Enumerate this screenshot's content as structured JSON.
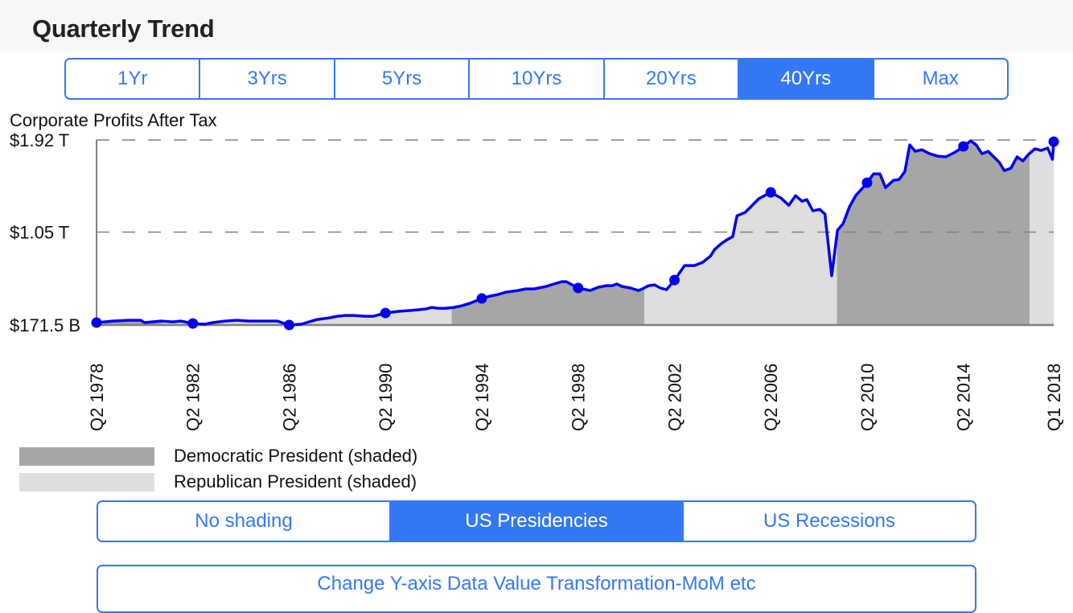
{
  "header": {
    "title": "Quarterly Trend"
  },
  "range_selector": {
    "options": [
      "1Yr",
      "3Yrs",
      "5Yrs",
      "10Yrs",
      "20Yrs",
      "40Yrs",
      "Max"
    ],
    "selected": "40Yrs"
  },
  "shading_selector": {
    "options": [
      "No shading",
      "US Presidencies",
      "US Recessions"
    ],
    "selected": "US Presidencies"
  },
  "transform_button": {
    "label": "Change Y-axis Data Value Transformation-MoM etc"
  },
  "legend": [
    {
      "label": "Democratic President (shaded)",
      "color": "#a6a6a6"
    },
    {
      "label": "Republican President (shaded)",
      "color": "#dedede"
    }
  ],
  "colors": {
    "accent": "#3478f6",
    "line": "#0000ee",
    "democratic": "#a6a6a6",
    "republican": "#dedede",
    "grid": "#808080"
  },
  "chart_data": {
    "type": "area",
    "title": "Corporate Profits After Tax",
    "xlabel": "",
    "ylabel": "",
    "units": "billions USD",
    "x_range": [
      1978.25,
      2018.0
    ],
    "ylim": [
      171.5,
      1920
    ],
    "y_ticks": [
      {
        "value": 171.5,
        "label": "$171.5 B"
      },
      {
        "value": 1050,
        "label": "$1.05 T"
      },
      {
        "value": 1920,
        "label": "$1.92 T"
      }
    ],
    "grid": "horizontal dashed at tick values",
    "x_ticks": [
      {
        "x": 1978.25,
        "label": "Q2 1978"
      },
      {
        "x": 1982.25,
        "label": "Q2 1982"
      },
      {
        "x": 1986.25,
        "label": "Q2 1986"
      },
      {
        "x": 1990.25,
        "label": "Q2 1990"
      },
      {
        "x": 1994.25,
        "label": "Q2 1994"
      },
      {
        "x": 1998.25,
        "label": "Q2 1998"
      },
      {
        "x": 2002.25,
        "label": "Q2 2002"
      },
      {
        "x": 2006.25,
        "label": "Q2 2006"
      },
      {
        "x": 2010.25,
        "label": "Q2 2010"
      },
      {
        "x": 2014.25,
        "label": "Q2 2014"
      },
      {
        "x": 2018.0,
        "label": "Q1 2018"
      }
    ],
    "series": [
      {
        "name": "Corporate Profits After Tax",
        "points": [
          [
            1978.25,
            194
          ],
          [
            1978.92,
            209
          ],
          [
            1979.58,
            216
          ],
          [
            1980.08,
            216
          ],
          [
            1980.25,
            194
          ],
          [
            1980.92,
            209
          ],
          [
            1981.42,
            201
          ],
          [
            1981.75,
            209
          ],
          [
            1982.25,
            186
          ],
          [
            1982.75,
            179
          ],
          [
            1983.08,
            194
          ],
          [
            1983.58,
            209
          ],
          [
            1984.08,
            216
          ],
          [
            1984.58,
            209
          ],
          [
            1985.25,
            209
          ],
          [
            1985.75,
            209
          ],
          [
            1986.25,
            171.5
          ],
          [
            1986.75,
            179
          ],
          [
            1987.08,
            201
          ],
          [
            1987.42,
            224
          ],
          [
            1987.92,
            239
          ],
          [
            1988.25,
            254
          ],
          [
            1988.58,
            262
          ],
          [
            1988.92,
            262
          ],
          [
            1989.42,
            254
          ],
          [
            1989.75,
            254
          ],
          [
            1990.25,
            285
          ],
          [
            1990.75,
            300
          ],
          [
            1991.25,
            308
          ],
          [
            1991.58,
            315
          ],
          [
            1991.92,
            323
          ],
          [
            1992.18,
            338
          ],
          [
            1992.42,
            330
          ],
          [
            1992.75,
            330
          ],
          [
            1993.08,
            338
          ],
          [
            1993.42,
            353
          ],
          [
            1993.75,
            376
          ],
          [
            1994.25,
            422
          ],
          [
            1994.58,
            444
          ],
          [
            1994.92,
            460
          ],
          [
            1995.25,
            482
          ],
          [
            1995.75,
            498
          ],
          [
            1996.08,
            513
          ],
          [
            1996.42,
            513
          ],
          [
            1996.92,
            536
          ],
          [
            1997.25,
            559
          ],
          [
            1997.58,
            581
          ],
          [
            1997.75,
            581
          ],
          [
            1998.25,
            521
          ],
          [
            1998.42,
            513
          ],
          [
            1998.75,
            498
          ],
          [
            1999.08,
            528
          ],
          [
            1999.42,
            543
          ],
          [
            1999.67,
            543
          ],
          [
            1999.85,
            559
          ],
          [
            2000.08,
            536
          ],
          [
            2000.42,
            521
          ],
          [
            2000.75,
            498
          ],
          [
            2000.92,
            513
          ],
          [
            2001.18,
            543
          ],
          [
            2001.42,
            551
          ],
          [
            2001.67,
            521
          ],
          [
            2001.92,
            505
          ],
          [
            2002.25,
            596
          ],
          [
            2002.67,
            733
          ],
          [
            2003.08,
            733
          ],
          [
            2003.42,
            764
          ],
          [
            2003.75,
            824
          ],
          [
            2003.92,
            885
          ],
          [
            2004.18,
            938
          ],
          [
            2004.42,
            976
          ],
          [
            2004.67,
            1006
          ],
          [
            2004.85,
            1204
          ],
          [
            2005.18,
            1235
          ],
          [
            2005.42,
            1288
          ],
          [
            2005.75,
            1364
          ],
          [
            2006.25,
            1425
          ],
          [
            2006.67,
            1372
          ],
          [
            2007.0,
            1303
          ],
          [
            2007.28,
            1394
          ],
          [
            2007.55,
            1341
          ],
          [
            2007.75,
            1356
          ],
          [
            2008.0,
            1250
          ],
          [
            2008.28,
            1265
          ],
          [
            2008.5,
            1220
          ],
          [
            2008.78,
            637
          ],
          [
            2009.02,
            1068
          ],
          [
            2009.25,
            1128
          ],
          [
            2009.52,
            1288
          ],
          [
            2009.78,
            1395
          ],
          [
            2010.02,
            1455
          ],
          [
            2010.25,
            1516
          ],
          [
            2010.52,
            1600
          ],
          [
            2010.78,
            1600
          ],
          [
            2011.02,
            1470
          ],
          [
            2011.35,
            1539
          ],
          [
            2011.58,
            1547
          ],
          [
            2011.82,
            1623
          ],
          [
            2012.02,
            1874
          ],
          [
            2012.25,
            1813
          ],
          [
            2012.52,
            1828
          ],
          [
            2012.85,
            1790
          ],
          [
            2013.18,
            1767
          ],
          [
            2013.52,
            1760
          ],
          [
            2013.85,
            1798
          ],
          [
            2014.02,
            1821
          ],
          [
            2014.25,
            1859
          ],
          [
            2014.55,
            1912
          ],
          [
            2014.78,
            1874
          ],
          [
            2015.02,
            1790
          ],
          [
            2015.28,
            1813
          ],
          [
            2015.75,
            1706
          ],
          [
            2015.95,
            1630
          ],
          [
            2016.22,
            1653
          ],
          [
            2016.48,
            1760
          ],
          [
            2016.72,
            1722
          ],
          [
            2016.95,
            1783
          ],
          [
            2017.22,
            1836
          ],
          [
            2017.48,
            1821
          ],
          [
            2017.75,
            1844
          ],
          [
            2017.95,
            1737
          ],
          [
            2018.0,
            1904
          ]
        ],
        "highlighted_points": [
          [
            1978.25,
            194
          ],
          [
            1982.25,
            186
          ],
          [
            1986.25,
            171.5
          ],
          [
            1990.25,
            285
          ],
          [
            1994.25,
            422
          ],
          [
            1998.25,
            521
          ],
          [
            2002.25,
            596
          ],
          [
            2006.25,
            1425
          ],
          [
            2010.25,
            1516
          ],
          [
            2014.25,
            1859
          ],
          [
            2018.0,
            1904
          ]
        ]
      }
    ],
    "shading": [
      {
        "from": 1978.25,
        "to": 1981.0,
        "party": "Democratic"
      },
      {
        "from": 1981.0,
        "to": 1993.0,
        "party": "Republican"
      },
      {
        "from": 1993.0,
        "to": 2001.0,
        "party": "Democratic"
      },
      {
        "from": 2001.0,
        "to": 2009.0,
        "party": "Republican"
      },
      {
        "from": 2009.0,
        "to": 2017.0,
        "party": "Democratic"
      },
      {
        "from": 2017.0,
        "to": 2018.0,
        "party": "Republican"
      }
    ],
    "legend_position": "bottom-left"
  }
}
